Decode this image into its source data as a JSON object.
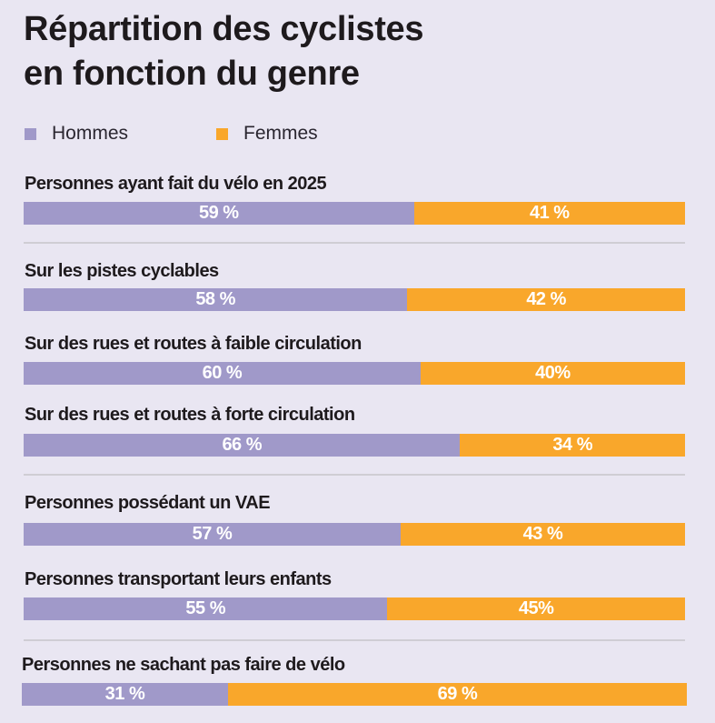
{
  "title": {
    "line1": "Répartition des cyclistes",
    "line2": "en fonction du genre"
  },
  "colors": {
    "background": "#e9e6f2",
    "hommes": "#a099c9",
    "femmes": "#f9a72b",
    "separator": "#cfcdd4"
  },
  "legend": [
    {
      "label": "Hommes",
      "color": "#a099c9"
    },
    {
      "label": "Femmes",
      "color": "#f9a72b"
    }
  ],
  "chart_data": {
    "type": "bar",
    "orientation": "horizontal",
    "stacked": true,
    "normalized": true,
    "title": "Répartition des cyclistes en fonction du genre",
    "xlabel": "",
    "ylabel": "",
    "xlim": [
      0,
      100
    ],
    "unit": "%",
    "grid": false,
    "legend_position": "top-left",
    "categories": [
      "Personnes ayant fait du vélo en 2025",
      "Sur les pistes cyclables",
      "Sur des rues et routes à faible circulation",
      "Sur des rues et routes à forte circulation",
      "Personnes possédant un VAE",
      "Personnes transportant leurs enfants",
      "Personnes ne sachant pas faire de vélo"
    ],
    "series": [
      {
        "name": "Hommes",
        "color": "#a099c9",
        "values": [
          59,
          58,
          60,
          66,
          57,
          55,
          31
        ],
        "labels": [
          "59 %",
          "58 %",
          "60 %",
          "66 %",
          "57 %",
          "55 %",
          "31 %"
        ]
      },
      {
        "name": "Femmes",
        "color": "#f9a72b",
        "values": [
          41,
          42,
          40,
          34,
          43,
          45,
          69
        ],
        "labels": [
          "41 %",
          "42 %",
          "40%",
          "34 %",
          "43 %",
          "45%",
          "69 %"
        ]
      }
    ],
    "group_separators_after": [
      0,
      3,
      5
    ]
  }
}
